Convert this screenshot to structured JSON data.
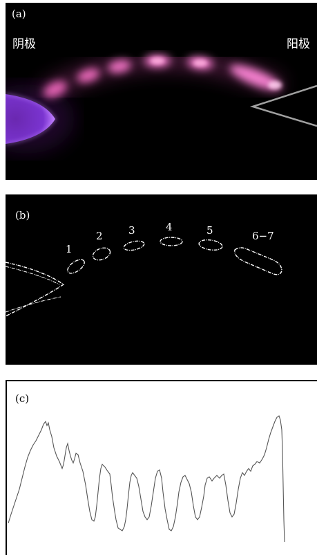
{
  "panel_a": {
    "label": "(a)",
    "cathode_label": "阴极",
    "anode_label": "阳极",
    "colors": {
      "glow": "#f070c8",
      "cathode": "#9a40f0",
      "anode_outline": "#a0a0a0"
    }
  },
  "panel_b": {
    "label": "(b)",
    "spots": [
      "1",
      "2",
      "3",
      "4",
      "5",
      "6−7"
    ]
  },
  "panel_c": {
    "label": "(c)"
  }
}
